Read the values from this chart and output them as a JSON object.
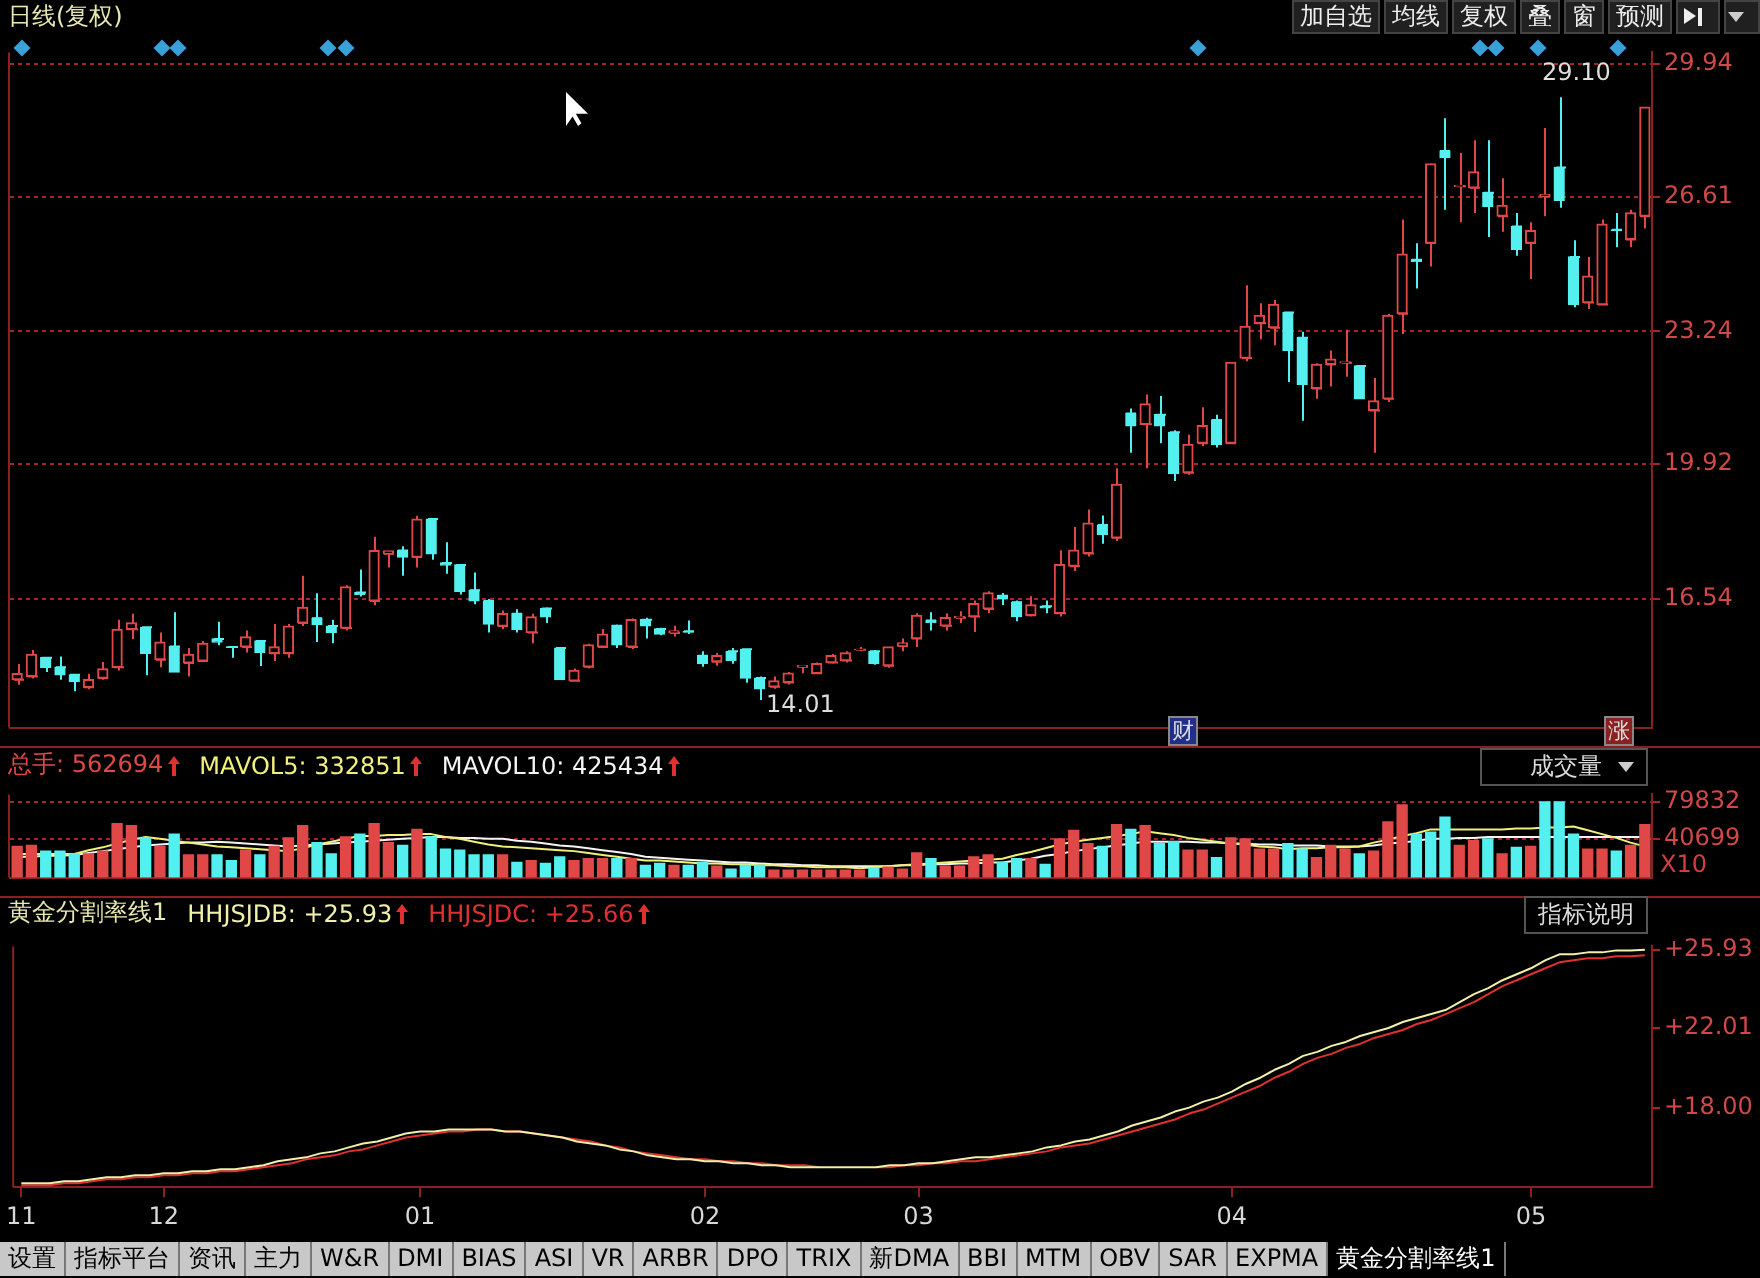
{
  "chart_data": [
    {
      "type": "candlestick",
      "title": "日线(复权)",
      "tick_labels": "y",
      "grid": "y",
      "categories": [
        "11",
        null,
        null,
        null,
        null,
        null,
        null,
        null,
        null,
        null,
        "12",
        null,
        null,
        null,
        null,
        null,
        null,
        null,
        null,
        null,
        null,
        null,
        null,
        null,
        null,
        null,
        null,
        null,
        "01",
        null,
        null,
        null,
        null,
        null,
        null,
        null,
        null,
        null,
        null,
        null,
        null,
        null,
        null,
        null,
        null,
        null,
        null,
        null,
        "02",
        null,
        null,
        null,
        null,
        null,
        null,
        null,
        null,
        null,
        null,
        null,
        null,
        null,
        null,
        "03",
        null,
        null,
        null,
        null,
        null,
        null,
        null,
        null,
        null,
        null,
        null,
        null,
        null,
        null,
        null,
        null,
        null,
        null,
        null,
        null,
        null,
        "04",
        null,
        null,
        null,
        null,
        null,
        null,
        null,
        null,
        null,
        null,
        null,
        null,
        null,
        null,
        null,
        null,
        null,
        null,
        null,
        null,
        "05",
        null,
        null,
        null,
        null,
        null,
        null,
        null,
        null
      ],
      "ohlc": [
        [
          14.52,
          14.91,
          14.39,
          14.67
        ],
        [
          14.6,
          15.26,
          14.55,
          15.15
        ],
        [
          15.07,
          15.07,
          14.71,
          14.83
        ],
        [
          14.83,
          15.1,
          14.52,
          14.64
        ],
        [
          14.64,
          14.64,
          14.23,
          14.47
        ],
        [
          14.33,
          14.67,
          14.28,
          14.52
        ],
        [
          14.56,
          14.96,
          14.52,
          14.79
        ],
        [
          14.83,
          16.02,
          14.75,
          15.78
        ],
        [
          15.78,
          16.17,
          15.54,
          15.94
        ],
        [
          15.83,
          15.83,
          14.63,
          15.18
        ],
        [
          15.02,
          15.7,
          14.83,
          15.46
        ],
        [
          15.35,
          16.21,
          14.71,
          14.71
        ],
        [
          14.94,
          15.31,
          14.6,
          15.15
        ],
        [
          14.99,
          15.49,
          14.96,
          15.43
        ],
        [
          15.54,
          15.97,
          15.38,
          15.46
        ],
        [
          15.34,
          15.34,
          15.07,
          15.33
        ],
        [
          15.34,
          15.75,
          15.2,
          15.59
        ],
        [
          15.49,
          15.49,
          14.86,
          15.2
        ],
        [
          15.18,
          15.91,
          14.99,
          15.34
        ],
        [
          15.18,
          15.91,
          15.07,
          15.86
        ],
        [
          15.94,
          17.12,
          15.86,
          16.33
        ],
        [
          16.06,
          16.68,
          15.46,
          15.9
        ],
        [
          15.86,
          16.02,
          15.43,
          15.7
        ],
        [
          15.81,
          16.88,
          15.75,
          16.84
        ],
        [
          16.7,
          17.28,
          16.6,
          16.65
        ],
        [
          16.49,
          18.1,
          16.38,
          17.75
        ],
        [
          17.67,
          17.74,
          17.33,
          17.74
        ],
        [
          17.75,
          17.86,
          17.12,
          17.59
        ],
        [
          17.59,
          18.62,
          17.33,
          18.54
        ],
        [
          18.54,
          18.54,
          17.52,
          17.67
        ],
        [
          17.44,
          17.96,
          17.17,
          17.39
        ],
        [
          17.39,
          17.39,
          16.65,
          16.73
        ],
        [
          16.76,
          17.2,
          16.41,
          16.49
        ],
        [
          16.49,
          16.54,
          15.7,
          15.91
        ],
        [
          15.86,
          16.25,
          15.78,
          16.17
        ],
        [
          16.17,
          16.28,
          15.7,
          15.78
        ],
        [
          15.7,
          16.17,
          15.43,
          16.09
        ],
        [
          16.3,
          16.33,
          15.94,
          16.09
        ],
        [
          15.31,
          15.34,
          14.52,
          14.52
        ],
        [
          14.49,
          14.8,
          14.49,
          14.75
        ],
        [
          14.84,
          15.42,
          14.8,
          15.39
        ],
        [
          15.34,
          15.79,
          15.31,
          15.66
        ],
        [
          15.87,
          15.9,
          15.31,
          15.39
        ],
        [
          15.34,
          16.05,
          15.29,
          16.02
        ],
        [
          16.02,
          16.07,
          15.55,
          15.87
        ],
        [
          15.79,
          15.82,
          15.63,
          15.66
        ],
        [
          15.69,
          15.87,
          15.6,
          15.74
        ],
        [
          15.73,
          16.0,
          15.66,
          15.71
        ],
        [
          15.12,
          15.23,
          14.84,
          14.92
        ],
        [
          14.97,
          15.19,
          14.87,
          15.12
        ],
        [
          15.23,
          15.31,
          14.92,
          15.0
        ],
        [
          15.28,
          15.28,
          14.44,
          14.56
        ],
        [
          14.56,
          14.6,
          14.01,
          14.29
        ],
        [
          14.34,
          14.6,
          14.29,
          14.49
        ],
        [
          14.45,
          14.71,
          14.4,
          14.68
        ],
        [
          14.84,
          14.87,
          14.68,
          14.87
        ],
        [
          14.68,
          14.95,
          14.66,
          14.92
        ],
        [
          14.95,
          15.16,
          14.92,
          15.12
        ],
        [
          15.0,
          15.23,
          14.95,
          15.19
        ],
        [
          15.27,
          15.34,
          15.23,
          15.28
        ],
        [
          15.23,
          15.26,
          14.89,
          14.92
        ],
        [
          14.87,
          15.34,
          14.82,
          15.34
        ],
        [
          15.36,
          15.55,
          15.23,
          15.44
        ],
        [
          15.55,
          16.18,
          15.34,
          16.13
        ],
        [
          16.0,
          16.21,
          15.75,
          15.95
        ],
        [
          15.87,
          16.18,
          15.75,
          16.07
        ],
        [
          16.07,
          16.23,
          15.94,
          16.1
        ],
        [
          16.1,
          16.5,
          15.71,
          16.42
        ],
        [
          16.29,
          16.73,
          16.18,
          16.69
        ],
        [
          16.62,
          16.69,
          16.39,
          16.54
        ],
        [
          16.46,
          16.5,
          15.98,
          16.1
        ],
        [
          16.13,
          16.61,
          16.1,
          16.39
        ],
        [
          16.36,
          16.5,
          16.18,
          16.32
        ],
        [
          16.18,
          17.76,
          16.1,
          17.4
        ],
        [
          17.36,
          18.34,
          17.24,
          17.76
        ],
        [
          17.68,
          18.78,
          17.6,
          18.44
        ],
        [
          18.39,
          18.63,
          17.92,
          18.15
        ],
        [
          18.07,
          19.81,
          17.99,
          19.41
        ],
        [
          21.18,
          21.31,
          20.2,
          20.87
        ],
        [
          20.91,
          21.66,
          19.81,
          21.42
        ],
        [
          21.15,
          21.62,
          20.44,
          20.87
        ],
        [
          20.71,
          20.76,
          19.49,
          19.68
        ],
        [
          19.7,
          20.65,
          19.65,
          20.41
        ],
        [
          20.44,
          21.34,
          20.36,
          20.88
        ],
        [
          21.02,
          21.15,
          20.33,
          20.41
        ],
        [
          20.44,
          22.46,
          20.44,
          22.46
        ],
        [
          22.57,
          24.39,
          22.49,
          23.36
        ],
        [
          23.44,
          23.94,
          23.04,
          23.64
        ],
        [
          23.33,
          24.02,
          22.89,
          23.91
        ],
        [
          23.71,
          23.71,
          21.97,
          22.76
        ],
        [
          23.08,
          23.23,
          21.0,
          21.91
        ],
        [
          21.81,
          22.44,
          21.55,
          22.41
        ],
        [
          22.41,
          22.76,
          21.86,
          22.54
        ],
        [
          22.45,
          23.28,
          22.1,
          22.47
        ],
        [
          22.37,
          22.37,
          21.55,
          21.55
        ],
        [
          21.26,
          22.07,
          20.2,
          21.5
        ],
        [
          21.55,
          23.68,
          21.47,
          23.64
        ],
        [
          23.68,
          26.04,
          23.17,
          25.17
        ],
        [
          25.03,
          25.44,
          24.31,
          24.99
        ],
        [
          25.45,
          27.43,
          24.86,
          27.43
        ],
        [
          27.75,
          28.57,
          26.28,
          27.59
        ],
        [
          26.87,
          27.7,
          25.97,
          26.89
        ],
        [
          26.83,
          28.02,
          26.2,
          27.23
        ],
        [
          26.71,
          28.02,
          25.6,
          26.36
        ],
        [
          26.12,
          27.07,
          25.73,
          26.39
        ],
        [
          25.86,
          26.2,
          25.13,
          25.29
        ],
        [
          25.45,
          25.97,
          24.55,
          25.76
        ],
        [
          26.62,
          28.33,
          26.12,
          26.66
        ],
        [
          27.34,
          29.1,
          26.33,
          26.52
        ],
        [
          25.1,
          25.52,
          23.84,
          23.91
        ],
        [
          23.96,
          25.1,
          23.8,
          24.62
        ],
        [
          23.91,
          26.04,
          23.91,
          25.92
        ],
        [
          25.78,
          26.2,
          25.34,
          25.76
        ],
        [
          25.54,
          26.28,
          25.34,
          26.2
        ],
        [
          26.12,
          28.85,
          25.81,
          28.85
        ]
      ],
      "colors": [
        "#e04848",
        "#e04848",
        "#54f0f0",
        "#54f0f0",
        "#54f0f0",
        "#e04848",
        "#e04848",
        "#e04848",
        "#e04848",
        "#54f0f0",
        "#e04848",
        "#54f0f0",
        "#e04848",
        "#e04848",
        "#54f0f0",
        "#54f0f0",
        "#e04848",
        "#54f0f0",
        "#e04848",
        "#e04848",
        "#e04848",
        "#54f0f0",
        "#54f0f0",
        "#e04848",
        "#54f0f0",
        "#e04848",
        "#e04848",
        "#54f0f0",
        "#e04848",
        "#54f0f0",
        "#54f0f0",
        "#54f0f0",
        "#54f0f0",
        "#54f0f0",
        "#e04848",
        "#54f0f0",
        "#e04848",
        "#54f0f0",
        "#54f0f0",
        "#e04848",
        "#e04848",
        "#e04848",
        "#54f0f0",
        "#e04848",
        "#54f0f0",
        "#54f0f0",
        "#e04848",
        "#54f0f0",
        "#54f0f0",
        "#e04848",
        "#54f0f0",
        "#54f0f0",
        "#54f0f0",
        "#e04848",
        "#e04848",
        "#e04848",
        "#e04848",
        "#e04848",
        "#e04848",
        "#e04848",
        "#54f0f0",
        "#e04848",
        "#e04848",
        "#e04848",
        "#54f0f0",
        "#e04848",
        "#e04848",
        "#e04848",
        "#e04848",
        "#54f0f0",
        "#54f0f0",
        "#e04848",
        "#54f0f0",
        "#e04848",
        "#e04848",
        "#e04848",
        "#54f0f0",
        "#e04848",
        "#54f0f0",
        "#e04848",
        "#54f0f0",
        "#54f0f0",
        "#e04848",
        "#e04848",
        "#54f0f0",
        "#e04848",
        "#e04848",
        "#e04848",
        "#e04848",
        "#54f0f0",
        "#54f0f0",
        "#e04848",
        "#e04848",
        "#e04848",
        "#54f0f0",
        "#e04848",
        "#e04848",
        "#e04848",
        "#54f0f0",
        "#e04848",
        "#54f0f0",
        "#e04848",
        "#e04848",
        "#54f0f0",
        "#e04848",
        "#54f0f0",
        "#e04848",
        "#e04848",
        "#54f0f0",
        "#54f0f0",
        "#e04848",
        "#e04848",
        "#54f0f0",
        "#e04848",
        "#e04848"
      ],
      "ylim": [
        13.32,
        30.22
      ],
      "yticks": [
        16.54,
        19.92,
        23.24,
        26.61,
        29.94
      ],
      "annotations": [
        "14.01",
        "29.10",
        "财",
        "涨"
      ]
    },
    {
      "type": "bar",
      "tick_labels": "y",
      "grid": "y",
      "legend": "top left",
      "ylabel": "X10",
      "annotations": [
        "成交量"
      ],
      "categories": [
        "11",
        null,
        null,
        null,
        null,
        null,
        null,
        null,
        null,
        null,
        "12",
        null,
        null,
        null,
        null,
        null,
        null,
        null,
        null,
        null,
        null,
        null,
        null,
        null,
        null,
        null,
        null,
        null,
        "01",
        null,
        null,
        null,
        null,
        null,
        null,
        null,
        null,
        null,
        null,
        null,
        null,
        null,
        null,
        null,
        null,
        null,
        null,
        null,
        "02",
        null,
        null,
        null,
        null,
        null,
        null,
        null,
        null,
        null,
        null,
        null,
        null,
        null,
        null,
        "03",
        null,
        null,
        null,
        null,
        null,
        null,
        null,
        null,
        null,
        null,
        null,
        null,
        null,
        null,
        null,
        null,
        null,
        null,
        null,
        null,
        null,
        "04",
        null,
        null,
        null,
        null,
        null,
        null,
        null,
        null,
        null,
        null,
        null,
        null,
        null,
        null,
        null,
        null,
        null,
        null,
        null,
        null,
        "05",
        null,
        null,
        null,
        null,
        null,
        null,
        null,
        null
      ],
      "ylim": [
        0,
        88000
      ],
      "yticks": [
        40699,
        79832
      ],
      "series": [
        {
          "name": "总手: 562694",
          "type": "bar",
          "colors": [
            "#e04848",
            "#e04848",
            "#54f0f0",
            "#54f0f0",
            "#54f0f0",
            "#e04848",
            "#e04848",
            "#e04848",
            "#e04848",
            "#54f0f0",
            "#e04848",
            "#54f0f0",
            "#e04848",
            "#e04848",
            "#54f0f0",
            "#54f0f0",
            "#e04848",
            "#54f0f0",
            "#e04848",
            "#e04848",
            "#e04848",
            "#54f0f0",
            "#54f0f0",
            "#e04848",
            "#54f0f0",
            "#e04848",
            "#e04848",
            "#54f0f0",
            "#e04848",
            "#54f0f0",
            "#54f0f0",
            "#54f0f0",
            "#54f0f0",
            "#54f0f0",
            "#e04848",
            "#54f0f0",
            "#e04848",
            "#54f0f0",
            "#54f0f0",
            "#e04848",
            "#e04848",
            "#e04848",
            "#54f0f0",
            "#e04848",
            "#54f0f0",
            "#54f0f0",
            "#e04848",
            "#54f0f0",
            "#54f0f0",
            "#e04848",
            "#54f0f0",
            "#54f0f0",
            "#54f0f0",
            "#e04848",
            "#e04848",
            "#e04848",
            "#e04848",
            "#e04848",
            "#e04848",
            "#e04848",
            "#54f0f0",
            "#e04848",
            "#e04848",
            "#e04848",
            "#54f0f0",
            "#e04848",
            "#e04848",
            "#e04848",
            "#e04848",
            "#54f0f0",
            "#54f0f0",
            "#e04848",
            "#54f0f0",
            "#e04848",
            "#e04848",
            "#e04848",
            "#54f0f0",
            "#e04848",
            "#54f0f0",
            "#e04848",
            "#54f0f0",
            "#54f0f0",
            "#e04848",
            "#e04848",
            "#54f0f0",
            "#e04848",
            "#e04848",
            "#e04848",
            "#e04848",
            "#54f0f0",
            "#54f0f0",
            "#e04848",
            "#e04848",
            "#e04848",
            "#54f0f0",
            "#e04848",
            "#e04848",
            "#e04848",
            "#54f0f0",
            "#54f0f0",
            "#54f0f0",
            "#e04848",
            "#e04848",
            "#54f0f0",
            "#e04848",
            "#54f0f0",
            "#e04848",
            "#54f0f0",
            "#54f0f0",
            "#54f0f0",
            "#e04848",
            "#e04848",
            "#54f0f0",
            "#e04848",
            "#e04848"
          ],
          "values": [
            33000,
            34000,
            28000,
            28000,
            25000,
            25000,
            28000,
            57000,
            55000,
            42000,
            33000,
            46000,
            24000,
            24000,
            24000,
            18000,
            29000,
            24000,
            33000,
            42000,
            55000,
            37000,
            25000,
            43000,
            46000,
            57000,
            37000,
            34000,
            51000,
            43000,
            30000,
            29000,
            24000,
            24000,
            24000,
            16000,
            18000,
            15000,
            22000,
            18000,
            20000,
            20000,
            20000,
            20000,
            13000,
            15000,
            13000,
            13000,
            16000,
            12000,
            9000,
            13000,
            13000,
            8000,
            8000,
            8000,
            8000,
            8000,
            8000,
            8000,
            10000,
            11000,
            9000,
            26000,
            20000,
            12000,
            12000,
            22000,
            24000,
            16000,
            20000,
            20000,
            14000,
            41000,
            50000,
            36000,
            33000,
            56000,
            51000,
            55000,
            36000,
            38000,
            29000,
            29000,
            21000,
            42000,
            41000,
            30000,
            30000,
            36000,
            30000,
            21000,
            34000,
            30000,
            25000,
            28000,
            59000,
            77000,
            46000,
            48000,
            64000,
            34000,
            39000,
            41000,
            25000,
            32000,
            33000,
            80000,
            80000,
            46000,
            30000,
            30000,
            28000,
            34000,
            56000
          ]
        },
        {
          "name": "MAVOL5: 332851",
          "type": "line",
          "color": "#f0f07a",
          "values": [
            25000,
            25000,
            25000,
            25000,
            25000,
            29000,
            32000,
            36000,
            40000,
            43000,
            41000,
            39000,
            37000,
            35000,
            33000,
            32000,
            31000,
            30000,
            29000,
            28000,
            31000,
            35000,
            38000,
            41000,
            44000,
            44000,
            45000,
            45000,
            46000,
            46000,
            43000,
            41000,
            38000,
            35000,
            33000,
            32000,
            31000,
            30000,
            29000,
            28000,
            26000,
            24000,
            22000,
            20000,
            18000,
            18000,
            17000,
            16000,
            15000,
            15000,
            14000,
            14000,
            13000,
            13000,
            12000,
            12000,
            11000,
            11000,
            11000,
            10000,
            11000,
            12000,
            13000,
            14000,
            15000,
            16000,
            17000,
            18000,
            19000,
            20000,
            24000,
            27000,
            31000,
            35000,
            38000,
            40000,
            42000,
            44000,
            46000,
            49000,
            47000,
            45000,
            42000,
            40000,
            38000,
            36000,
            35000,
            33000,
            32000,
            30000,
            31000,
            31000,
            32000,
            32000,
            33000,
            37000,
            40000,
            44000,
            47000,
            51000,
            51000,
            51000,
            51000,
            51000,
            51000,
            52000,
            52000,
            53000,
            53000,
            54000,
            50000,
            46000,
            42000,
            37000,
            33000
          ]
        },
        {
          "name": "MAVOL10: 425434",
          "type": "line",
          "color": "#f4f4f4",
          "values": [
            22000,
            22000,
            23000,
            23000,
            24000,
            26000,
            28000,
            30000,
            32000,
            34000,
            35000,
            36000,
            37000,
            37000,
            38000,
            37000,
            36000,
            35000,
            34000,
            33000,
            34000,
            35000,
            36000,
            37000,
            38000,
            39000,
            40000,
            41000,
            42000,
            43000,
            43000,
            42000,
            42000,
            41000,
            41000,
            39000,
            38000,
            36000,
            34000,
            33000,
            31000,
            29000,
            27000,
            25000,
            22000,
            21000,
            20000,
            19000,
            18000,
            17000,
            16000,
            16000,
            15000,
            14000,
            14000,
            13000,
            13000,
            12000,
            12000,
            12000,
            12000,
            12000,
            13000,
            13000,
            14000,
            14000,
            15000,
            15000,
            16000,
            16000,
            18000,
            20000,
            23000,
            25000,
            28000,
            30000,
            32000,
            34000,
            36000,
            38000,
            38000,
            38000,
            38000,
            37000,
            37000,
            36000,
            36000,
            35000,
            35000,
            34000,
            34000,
            34000,
            33000,
            33000,
            33000,
            34000,
            36000,
            37000,
            39000,
            41000,
            41000,
            42000,
            42000,
            43000,
            43000,
            43000,
            43000,
            43000,
            43000,
            43000,
            43000,
            43000,
            43000,
            43000,
            43000
          ]
        }
      ]
    },
    {
      "type": "line",
      "title": "黄金分割率线1",
      "legend": "top left",
      "annotations": [
        "指标说明"
      ],
      "categories": [
        "11",
        null,
        null,
        null,
        null,
        null,
        null,
        null,
        null,
        null,
        "12",
        null,
        null,
        null,
        null,
        null,
        null,
        null,
        null,
        null,
        null,
        null,
        null,
        null,
        null,
        null,
        null,
        null,
        "01",
        null,
        null,
        null,
        null,
        null,
        null,
        null,
        null,
        null,
        null,
        null,
        null,
        null,
        null,
        null,
        null,
        null,
        null,
        null,
        "02",
        null,
        null,
        null,
        null,
        null,
        null,
        null,
        null,
        null,
        null,
        null,
        null,
        null,
        null,
        "03",
        null,
        null,
        null,
        null,
        null,
        null,
        null,
        null,
        null,
        null,
        null,
        null,
        null,
        null,
        null,
        null,
        null,
        null,
        null,
        null,
        null,
        "04",
        null,
        null,
        null,
        null,
        null,
        null,
        null,
        null,
        null,
        null,
        null,
        null,
        null,
        null,
        null,
        null,
        null,
        null,
        null,
        null,
        "05",
        null,
        null,
        null,
        null,
        null,
        null,
        null,
        null
      ],
      "ylim": [
        14.0,
        26.1
      ],
      "yticks": [
        {
          "value": 18.0,
          "label": "+18.00"
        },
        {
          "value": 22.01,
          "label": "+22.01"
        },
        {
          "value": 25.93,
          "label": "+25.93"
        }
      ],
      "series": [
        {
          "name": "HHJSJDB: +25.93",
          "color": "#f0f0a8",
          "values": [
            14.2,
            14.2,
            14.2,
            14.3,
            14.3,
            14.4,
            14.5,
            14.5,
            14.6,
            14.6,
            14.7,
            14.7,
            14.8,
            14.8,
            14.9,
            14.9,
            15.0,
            15.1,
            15.3,
            15.4,
            15.5,
            15.7,
            15.8,
            16.0,
            16.2,
            16.3,
            16.5,
            16.7,
            16.8,
            16.8,
            16.9,
            16.9,
            16.9,
            16.9,
            16.8,
            16.8,
            16.7,
            16.6,
            16.5,
            16.3,
            16.2,
            16.1,
            15.9,
            15.8,
            15.6,
            15.5,
            15.4,
            15.4,
            15.3,
            15.3,
            15.2,
            15.2,
            15.1,
            15.1,
            15.0,
            15.0,
            15.0,
            15.0,
            15.0,
            15.0,
            15.0,
            15.1,
            15.1,
            15.2,
            15.2,
            15.3,
            15.4,
            15.5,
            15.5,
            15.6,
            15.7,
            15.8,
            16.0,
            16.1,
            16.3,
            16.4,
            16.6,
            16.8,
            17.1,
            17.3,
            17.5,
            17.8,
            18.0,
            18.3,
            18.5,
            18.8,
            19.2,
            19.5,
            19.9,
            20.2,
            20.6,
            20.8,
            21.1,
            21.3,
            21.6,
            21.8,
            22.0,
            22.3,
            22.5,
            22.7,
            22.9,
            23.3,
            23.7,
            24.0,
            24.4,
            24.7,
            25.0,
            25.4,
            25.7,
            25.7,
            25.8,
            25.8,
            25.9,
            25.9,
            25.93
          ]
        },
        {
          "name": "HHJSJDC: +25.66",
          "color": "#e03030",
          "values": [
            14.1,
            14.1,
            14.1,
            14.2,
            14.2,
            14.3,
            14.4,
            14.4,
            14.5,
            14.5,
            14.6,
            14.6,
            14.7,
            14.7,
            14.8,
            14.8,
            14.9,
            15.0,
            15.1,
            15.2,
            15.4,
            15.5,
            15.6,
            15.8,
            15.9,
            16.1,
            16.3,
            16.5,
            16.6,
            16.7,
            16.8,
            16.8,
            16.9,
            16.9,
            16.8,
            16.8,
            16.7,
            16.6,
            16.5,
            16.4,
            16.3,
            16.1,
            16.0,
            15.8,
            15.7,
            15.6,
            15.5,
            15.4,
            15.4,
            15.3,
            15.3,
            15.2,
            15.2,
            15.1,
            15.1,
            15.1,
            15.0,
            null,
            null,
            null,
            15.0,
            15.0,
            15.1,
            15.1,
            15.2,
            15.2,
            15.3,
            15.3,
            15.4,
            15.5,
            15.6,
            15.7,
            15.8,
            16.0,
            16.1,
            16.2,
            16.4,
            16.6,
            16.8,
            17.0,
            17.2,
            17.4,
            17.7,
            17.9,
            18.2,
            18.5,
            18.8,
            19.1,
            19.5,
            19.8,
            20.2,
            20.5,
            20.7,
            21.0,
            21.2,
            21.5,
            21.7,
            21.9,
            22.2,
            22.4,
            22.7,
            23.0,
            23.3,
            23.7,
            24.1,
            24.4,
            24.7,
            25.0,
            25.3,
            25.4,
            25.5,
            25.5,
            25.6,
            25.6,
            25.66
          ]
        }
      ]
    },
    {
      "type": "other",
      "annotations": [
        "加自选",
        "均线",
        "复权",
        "叠",
        "窗",
        "预测"
      ]
    },
    {
      "type": "other",
      "annotations": [
        "设置",
        "指标平台",
        "资讯",
        "主力",
        "W&R",
        "DMI",
        "BIAS",
        "ASI",
        "VR",
        "ARBR",
        "DPO",
        "TRIX",
        "新DMA",
        "BBI",
        "MTM",
        "OBV",
        "SAR",
        "EXPMA",
        "黄金分割率线1"
      ]
    }
  ]
}
